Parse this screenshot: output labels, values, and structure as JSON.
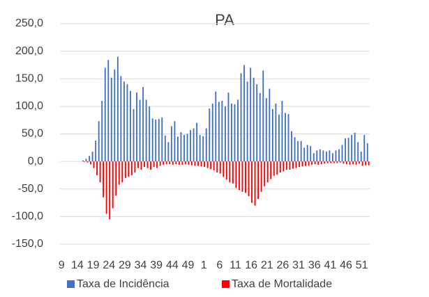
{
  "chart_data": {
    "type": "bar",
    "title": "PA",
    "categories": [
      "9",
      null,
      null,
      null,
      null,
      "14",
      null,
      null,
      null,
      null,
      "19",
      null,
      null,
      null,
      null,
      "24",
      null,
      null,
      null,
      null,
      "29",
      null,
      null,
      null,
      null,
      "34",
      null,
      null,
      null,
      null,
      "39",
      null,
      null,
      null,
      null,
      "44",
      null,
      null,
      null,
      null,
      "49",
      null,
      null,
      null,
      null,
      "1",
      null,
      null,
      null,
      null,
      "6",
      null,
      null,
      null,
      null,
      "11",
      null,
      null,
      null,
      null,
      "16",
      null,
      null,
      null,
      null,
      "21",
      null,
      null,
      null,
      null,
      "26",
      null,
      null,
      null,
      null,
      "31",
      null,
      null,
      null,
      null,
      "36",
      null,
      null,
      null,
      null,
      "41",
      null,
      null,
      null,
      null,
      "46",
      null,
      null,
      null,
      null,
      "51",
      null,
      null
    ],
    "series": [
      {
        "name": "Taxa de Incidência",
        "color": "#4472c4",
        "values": [
          0,
          0,
          0,
          0,
          0,
          0,
          0,
          2,
          5,
          10,
          18,
          38,
          73,
          110,
          170,
          184,
          152,
          167,
          190,
          155,
          145,
          140,
          128,
          95,
          125,
          112,
          135,
          112,
          100,
          78,
          76,
          77,
          80,
          47,
          35,
          64,
          73,
          45,
          53,
          48,
          50,
          57,
          60,
          70,
          48,
          46,
          60,
          96,
          105,
          127,
          108,
          110,
          100,
          125,
          105,
          104,
          112,
          160,
          175,
          145,
          170,
          152,
          140,
          124,
          165,
          115,
          132,
          95,
          105,
          85,
          110,
          88,
          86,
          55,
          44,
          37,
          37,
          25,
          30,
          28,
          15,
          20,
          22,
          20,
          18,
          20,
          15,
          20,
          22,
          30,
          42,
          43,
          48,
          52,
          35,
          18,
          48,
          33
        ]
      },
      {
        "name": "Taxa de Mortalidade",
        "color": "#ff0000",
        "values": [
          0,
          0,
          0,
          0,
          0,
          0,
          0,
          -1,
          -2,
          -5,
          -12,
          -25,
          -38,
          -65,
          -95,
          -105,
          -85,
          -62,
          -42,
          -38,
          -30,
          -28,
          -25,
          -20,
          -12,
          -15,
          -10,
          -12,
          -15,
          -10,
          -12,
          -8,
          -6,
          -5,
          -5,
          -6,
          -5,
          -6,
          -6,
          -5,
          -6,
          -7,
          -8,
          -8,
          -9,
          -10,
          -12,
          -14,
          -16,
          -20,
          -22,
          -28,
          -33,
          -38,
          -40,
          -48,
          -52,
          -55,
          -57,
          -63,
          -75,
          -80,
          -68,
          -55,
          -45,
          -38,
          -32,
          -26,
          -24,
          -20,
          -18,
          -15,
          -15,
          -13,
          -12,
          -10,
          -9,
          -8,
          -8,
          -6,
          -5,
          -6,
          -5,
          -4,
          -3,
          -3,
          -3,
          -3,
          -2,
          -4,
          -5,
          -6,
          -5,
          -6,
          -4,
          -8,
          -7,
          -7
        ]
      }
    ],
    "ylim": [
      -150,
      250
    ],
    "yticks": [
      {
        "value": -150,
        "label": "-150,0"
      },
      {
        "value": -100,
        "label": "-100,0"
      },
      {
        "value": -50,
        "label": "-50,0"
      },
      {
        "value": 0,
        "label": "0,0"
      },
      {
        "value": 50,
        "label": "50,0"
      },
      {
        "value": 100,
        "label": "100,0"
      },
      {
        "value": 150,
        "label": "150,0"
      },
      {
        "value": 200,
        "label": "200,0"
      },
      {
        "value": 250,
        "label": "250,0"
      }
    ],
    "grid": true
  }
}
